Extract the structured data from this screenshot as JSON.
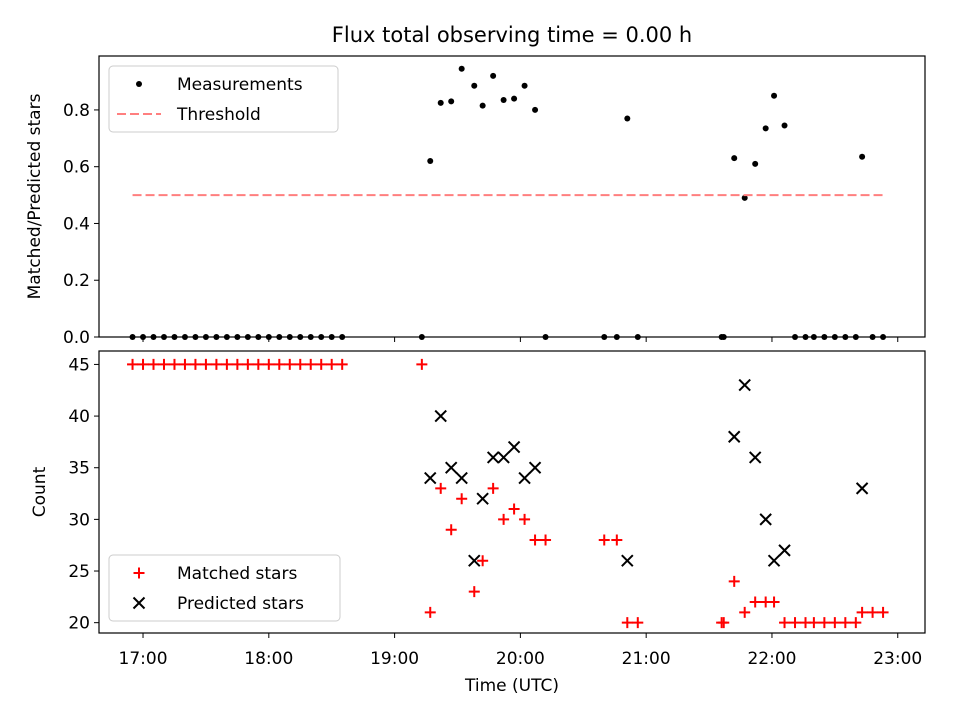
{
  "title": "Flux total observing time = 0.00 h",
  "chart_data": [
    {
      "type": "scatter",
      "ylabel": "Matched/Predicted stars",
      "xlim": [
        "16:39",
        "23:13"
      ],
      "ylim": [
        0,
        0.99
      ],
      "x_ticks": [
        "17:00",
        "18:00",
        "19:00",
        "20:00",
        "21:00",
        "22:00",
        "23:00"
      ],
      "y_ticks": [
        "0.0",
        "0.2",
        "0.4",
        "0.6",
        "0.8"
      ],
      "legend_position": "upper-left",
      "series": [
        {
          "name": "Measurements",
          "marker": "dot",
          "color": "#000000",
          "points": [
            [
              "16:55",
              0
            ],
            [
              "17:00",
              0
            ],
            [
              "17:05",
              0
            ],
            [
              "17:10",
              0
            ],
            [
              "17:15",
              0
            ],
            [
              "17:20",
              0
            ],
            [
              "17:25",
              0
            ],
            [
              "17:30",
              0
            ],
            [
              "17:35",
              0
            ],
            [
              "17:40",
              0
            ],
            [
              "17:45",
              0
            ],
            [
              "17:50",
              0
            ],
            [
              "17:55",
              0
            ],
            [
              "18:00",
              0
            ],
            [
              "18:05",
              0
            ],
            [
              "18:10",
              0
            ],
            [
              "18:15",
              0
            ],
            [
              "18:20",
              0
            ],
            [
              "18:25",
              0
            ],
            [
              "18:30",
              0
            ],
            [
              "18:35",
              0
            ],
            [
              "19:13",
              0
            ],
            [
              "19:17",
              0.62
            ],
            [
              "19:22",
              0.825
            ],
            [
              "19:27",
              0.83
            ],
            [
              "19:32",
              0.945
            ],
            [
              "19:38",
              0.885
            ],
            [
              "19:42",
              0.815
            ],
            [
              "19:47",
              0.92
            ],
            [
              "19:52",
              0.835
            ],
            [
              "19:57",
              0.84
            ],
            [
              "20:02",
              0.885
            ],
            [
              "20:07",
              0.8
            ],
            [
              "20:12",
              0
            ],
            [
              "20:40",
              0
            ],
            [
              "20:46",
              0
            ],
            [
              "20:51",
              0.77
            ],
            [
              "20:56",
              0
            ],
            [
              "21:36",
              0
            ],
            [
              "21:37",
              0
            ],
            [
              "21:42",
              0.63
            ],
            [
              "21:47",
              0.49
            ],
            [
              "21:52",
              0.61
            ],
            [
              "21:57",
              0.735
            ],
            [
              "22:01",
              0.85
            ],
            [
              "22:06",
              0.745
            ],
            [
              "22:11",
              0
            ],
            [
              "22:16",
              0
            ],
            [
              "22:20",
              0
            ],
            [
              "22:25",
              0
            ],
            [
              "22:30",
              0
            ],
            [
              "22:35",
              0
            ],
            [
              "22:40",
              0
            ],
            [
              "22:43",
              0.635
            ],
            [
              "22:48",
              0
            ],
            [
              "22:53",
              0
            ]
          ]
        },
        {
          "name": "Threshold",
          "marker": "dashed-line",
          "color": "#ff7f7f",
          "points": [
            [
              "16:55",
              0.5
            ],
            [
              "22:53",
              0.5
            ]
          ]
        }
      ]
    },
    {
      "type": "scatter",
      "xlabel": "Time (UTC)",
      "ylabel": "Count",
      "xlim": [
        "16:39",
        "23:13"
      ],
      "ylim": [
        19,
        46.3
      ],
      "x_ticks": [
        "17:00",
        "18:00",
        "19:00",
        "20:00",
        "21:00",
        "22:00",
        "23:00"
      ],
      "y_ticks": [
        "20",
        "25",
        "30",
        "35",
        "40",
        "45"
      ],
      "legend_position": "lower-left",
      "series": [
        {
          "name": "Matched stars",
          "marker": "plus",
          "color": "#ff0000",
          "points": [
            [
              "16:55",
              45
            ],
            [
              "17:00",
              45
            ],
            [
              "17:05",
              45
            ],
            [
              "17:10",
              45
            ],
            [
              "17:15",
              45
            ],
            [
              "17:20",
              45
            ],
            [
              "17:25",
              45
            ],
            [
              "17:30",
              45
            ],
            [
              "17:35",
              45
            ],
            [
              "17:40",
              45
            ],
            [
              "17:45",
              45
            ],
            [
              "17:50",
              45
            ],
            [
              "17:55",
              45
            ],
            [
              "18:00",
              45
            ],
            [
              "18:05",
              45
            ],
            [
              "18:10",
              45
            ],
            [
              "18:15",
              45
            ],
            [
              "18:20",
              45
            ],
            [
              "18:25",
              45
            ],
            [
              "18:30",
              45
            ],
            [
              "18:35",
              45
            ],
            [
              "19:13",
              45
            ],
            [
              "19:17",
              21
            ],
            [
              "19:22",
              33
            ],
            [
              "19:27",
              29
            ],
            [
              "19:32",
              32
            ],
            [
              "19:38",
              23
            ],
            [
              "19:42",
              26
            ],
            [
              "19:47",
              33
            ],
            [
              "19:52",
              30
            ],
            [
              "19:57",
              31
            ],
            [
              "20:02",
              30
            ],
            [
              "20:07",
              28
            ],
            [
              "20:12",
              28
            ],
            [
              "20:40",
              28
            ],
            [
              "20:46",
              28
            ],
            [
              "20:51",
              20
            ],
            [
              "20:56",
              20
            ],
            [
              "21:36",
              20
            ],
            [
              "21:37",
              20
            ],
            [
              "21:42",
              24
            ],
            [
              "21:47",
              21
            ],
            [
              "21:52",
              22
            ],
            [
              "21:57",
              22
            ],
            [
              "22:01",
              22
            ],
            [
              "22:06",
              20
            ],
            [
              "22:11",
              20
            ],
            [
              "22:16",
              20
            ],
            [
              "22:20",
              20
            ],
            [
              "22:25",
              20
            ],
            [
              "22:30",
              20
            ],
            [
              "22:35",
              20
            ],
            [
              "22:40",
              20
            ],
            [
              "22:43",
              21
            ],
            [
              "22:48",
              21
            ],
            [
              "22:53",
              21
            ]
          ]
        },
        {
          "name": "Predicted stars",
          "marker": "x",
          "color": "#000000",
          "points": [
            [
              "19:17",
              34
            ],
            [
              "19:22",
              40
            ],
            [
              "19:27",
              35
            ],
            [
              "19:32",
              34
            ],
            [
              "19:38",
              26
            ],
            [
              "19:42",
              32
            ],
            [
              "19:47",
              36
            ],
            [
              "19:52",
              36
            ],
            [
              "19:57",
              37
            ],
            [
              "20:02",
              34
            ],
            [
              "20:07",
              35
            ],
            [
              "20:51",
              26
            ],
            [
              "21:42",
              38
            ],
            [
              "21:47",
              43
            ],
            [
              "21:52",
              36
            ],
            [
              "21:57",
              30
            ],
            [
              "22:01",
              26
            ],
            [
              "22:06",
              27
            ],
            [
              "22:43",
              33
            ]
          ]
        }
      ]
    }
  ]
}
